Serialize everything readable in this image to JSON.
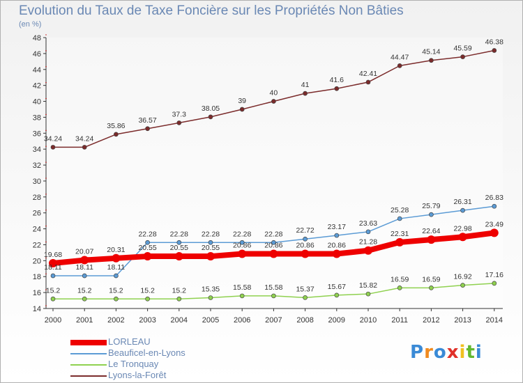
{
  "title": "Evolution du Taux de Taxe Foncière sur les Propriétés Non Bâties",
  "unit_label": "(en %)",
  "logo": {
    "letters": [
      "P",
      "r",
      "o",
      "x",
      "i",
      "t",
      "i"
    ],
    "colors": [
      "#3a8ad6",
      "#f08a1e",
      "#3a8ad6",
      "#e0312a",
      "#f0c020",
      "#62b830",
      "#3a8ad6"
    ]
  },
  "chart_data": {
    "type": "line",
    "title": "Evolution du Taux de Taxe Foncière sur les Propriétés Non Bâties",
    "ylabel": "(en %)",
    "xlabel": "",
    "x": [
      "2000",
      "2001",
      "2002",
      "2003",
      "2004",
      "2005",
      "2006",
      "2007",
      "2008",
      "2009",
      "2010",
      "2011",
      "2012",
      "2013",
      "2014"
    ],
    "ylim": [
      14,
      48
    ],
    "yticks": [
      14,
      16,
      18,
      20,
      22,
      24,
      26,
      28,
      30,
      32,
      34,
      36,
      38,
      40,
      42,
      44,
      46,
      48
    ],
    "grid": false,
    "legend_position": "bottom-left",
    "series": [
      {
        "name": "LORLEAU",
        "color": "#ee0000",
        "values": [
          19.68,
          20.07,
          20.31,
          20.55,
          20.55,
          20.55,
          20.86,
          20.86,
          20.86,
          20.86,
          21.28,
          22.31,
          22.64,
          22.98,
          23.49
        ],
        "labels": [
          "19.68",
          "20.07",
          "20.31",
          "20.55",
          "20.55",
          "20.55",
          "20.86",
          "20.86",
          "20.86",
          "20.86",
          "21.28",
          "22.31",
          "22.64",
          "22.98",
          "23.49"
        ]
      },
      {
        "name": "Beauficel-en-Lyons",
        "color": "#5b9bd5",
        "values": [
          18.11,
          18.11,
          18.11,
          22.28,
          22.28,
          22.28,
          22.28,
          22.28,
          22.72,
          23.17,
          23.63,
          25.28,
          25.79,
          26.31,
          26.83
        ],
        "labels": [
          "18.11",
          "18.11",
          "18.11",
          "22.28",
          "22.28",
          "22.28",
          "22.28",
          "22.28",
          "22.72",
          "23.17",
          "23.63",
          "25.28",
          "25.79",
          "26.31",
          "26.83"
        ]
      },
      {
        "name": "Le Tronquay",
        "color": "#8fd14f",
        "values": [
          15.2,
          15.2,
          15.2,
          15.2,
          15.2,
          15.35,
          15.58,
          15.58,
          15.37,
          15.67,
          15.82,
          16.59,
          16.59,
          16.92,
          17.16
        ],
        "labels": [
          "15.2",
          "15.2",
          "15.2",
          "15.2",
          "15.2",
          "15.35",
          "15.58",
          "15.58",
          "15.37",
          "15.67",
          "15.82",
          "16.59",
          "16.59",
          "16.92",
          "17.16"
        ]
      },
      {
        "name": "Lyons-la-Forêt",
        "color": "#7b2b2b",
        "values": [
          34.24,
          34.24,
          35.86,
          36.57,
          37.3,
          38.05,
          39,
          40,
          41,
          41.6,
          42.41,
          44.47,
          45.14,
          45.59,
          46.38
        ],
        "labels": [
          "34.24",
          "34.24",
          "35.86",
          "36.57",
          "37.3",
          "38.05",
          "39",
          "40",
          "41",
          "41.6",
          "42.41",
          "44.47",
          "45.14",
          "45.59",
          "46.38"
        ]
      }
    ]
  }
}
